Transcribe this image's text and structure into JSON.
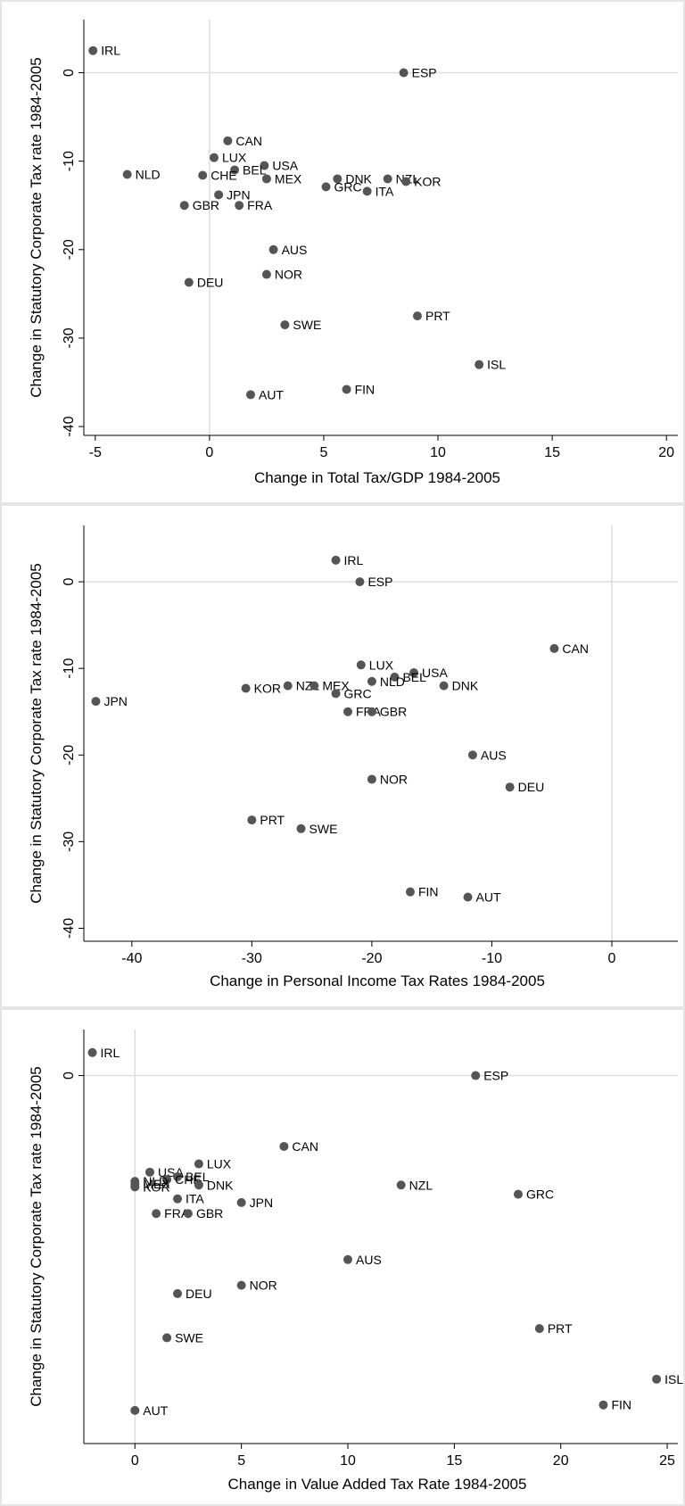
{
  "chart_data": [
    {
      "type": "scatter",
      "xlabel": "Change in Total Tax/GDP 1984-2005",
      "ylabel": "Change in Statutory Corporate Tax rate 1984-2005",
      "xlim": [
        -5.5,
        20.5
      ],
      "ylim": [
        -41,
        6
      ],
      "xticks": [
        -5,
        0,
        5,
        10,
        15,
        20
      ],
      "yticks": [
        0,
        -10,
        -20,
        -30,
        -40
      ],
      "xref": 0,
      "yref": 0,
      "points": [
        {
          "label": "IRL",
          "x": -5.1,
          "y": 2.5
        },
        {
          "label": "ESP",
          "x": 8.5,
          "y": 0
        },
        {
          "label": "CAN",
          "x": 0.8,
          "y": -7.7
        },
        {
          "label": "LUX",
          "x": 0.2,
          "y": -9.6
        },
        {
          "label": "USA",
          "x": 2.4,
          "y": -10.5
        },
        {
          "label": "BEL",
          "x": 1.1,
          "y": -11
        },
        {
          "label": "NLD",
          "x": -3.6,
          "y": -11.5
        },
        {
          "label": "CHE",
          "x": -0.3,
          "y": -11.6
        },
        {
          "label": "MEX",
          "x": 2.5,
          "y": -12
        },
        {
          "label": "DNK",
          "x": 5.6,
          "y": -12
        },
        {
          "label": "NZL",
          "x": 7.8,
          "y": -12
        },
        {
          "label": "KOR",
          "x": 8.6,
          "y": -12.3
        },
        {
          "label": "GRC",
          "x": 5.1,
          "y": -12.9
        },
        {
          "label": "ITA",
          "x": 6.9,
          "y": -13.4
        },
        {
          "label": "JPN",
          "x": 0.4,
          "y": -13.8
        },
        {
          "label": "GBR",
          "x": -1.1,
          "y": -15
        },
        {
          "label": "FRA",
          "x": 1.3,
          "y": -15
        },
        {
          "label": "AUS",
          "x": 2.8,
          "y": -20
        },
        {
          "label": "NOR",
          "x": 2.5,
          "y": -22.8
        },
        {
          "label": "DEU",
          "x": -0.9,
          "y": -23.7
        },
        {
          "label": "PRT",
          "x": 9.1,
          "y": -27.5
        },
        {
          "label": "SWE",
          "x": 3.3,
          "y": -28.5
        },
        {
          "label": "ISL",
          "x": 11.8,
          "y": -33
        },
        {
          "label": "FIN",
          "x": 6,
          "y": -35.8
        },
        {
          "label": "AUT",
          "x": 1.8,
          "y": -36.4
        }
      ]
    },
    {
      "type": "scatter",
      "xlabel": "Change in Personal Income Tax Rates 1984-2005",
      "ylabel": "Change in Statutory Corporate Tax rate 1984-2005",
      "xlim": [
        -44,
        5.5
      ],
      "ylim": [
        -41.5,
        6.5
      ],
      "xticks": [
        -40,
        -30,
        -20,
        -10,
        0
      ],
      "yticks": [
        0,
        -10,
        -20,
        -30,
        -40
      ],
      "xref": 0,
      "yref": 0,
      "points": [
        {
          "label": "IRL",
          "x": -23,
          "y": 2.5
        },
        {
          "label": "ESP",
          "x": -21,
          "y": 0
        },
        {
          "label": "CAN",
          "x": -4.8,
          "y": -7.7
        },
        {
          "label": "LUX",
          "x": -20.9,
          "y": -9.6
        },
        {
          "label": "USA",
          "x": -16.5,
          "y": -10.5
        },
        {
          "label": "BEL",
          "x": -18.1,
          "y": -11
        },
        {
          "label": "NLD",
          "x": -20,
          "y": -11.5
        },
        {
          "label": "DNK",
          "x": -14,
          "y": -12
        },
        {
          "label": "NZL",
          "x": -27,
          "y": -12
        },
        {
          "label": "MEX",
          "x": -24.8,
          "y": -12
        },
        {
          "label": "KOR",
          "x": -30.5,
          "y": -12.3
        },
        {
          "label": "GRC",
          "x": -23,
          "y": -12.9
        },
        {
          "label": "JPN",
          "x": -43,
          "y": -13.8
        },
        {
          "label": "FRA",
          "x": -22,
          "y": -15
        },
        {
          "label": "GBR",
          "x": -20,
          "y": -15
        },
        {
          "label": "AUS",
          "x": -11.6,
          "y": -20
        },
        {
          "label": "NOR",
          "x": -20,
          "y": -22.8
        },
        {
          "label": "DEU",
          "x": -8.5,
          "y": -23.7
        },
        {
          "label": "PRT",
          "x": -30,
          "y": -27.5
        },
        {
          "label": "SWE",
          "x": -25.9,
          "y": -28.5
        },
        {
          "label": "FIN",
          "x": -16.8,
          "y": -35.8
        },
        {
          "label": "AUT",
          "x": -12,
          "y": -36.4
        }
      ]
    },
    {
      "type": "scatter",
      "xlabel": "Change in Value Added Tax Rate 1984-2005",
      "ylabel": "Change in Statutory Corporate Tax rate 1984-2005",
      "xlim": [
        -2.4,
        25.5
      ],
      "ylim": [
        -40,
        5
      ],
      "xticks": [
        0,
        5,
        10,
        15,
        20,
        25
      ],
      "yticks": [
        0
      ],
      "xref": 0,
      "yref": 0,
      "points": [
        {
          "label": "IRL",
          "x": -2,
          "y": 2.5
        },
        {
          "label": "ESP",
          "x": 16,
          "y": 0
        },
        {
          "label": "CAN",
          "x": 7,
          "y": -7.7
        },
        {
          "label": "LUX",
          "x": 3,
          "y": -9.6
        },
        {
          "label": "USA",
          "x": 0.7,
          "y": -10.5
        },
        {
          "label": "BEL",
          "x": 2,
          "y": -11
        },
        {
          "label": "CHE",
          "x": 1.5,
          "y": -11.3
        },
        {
          "label": "NLD",
          "x": 0,
          "y": -11.5
        },
        {
          "label": "MEX",
          "x": 0,
          "y": -11.8
        },
        {
          "label": "KOR",
          "x": 0,
          "y": -12.1
        },
        {
          "label": "DNK",
          "x": 3,
          "y": -11.9
        },
        {
          "label": "NZL",
          "x": 12.5,
          "y": -11.9
        },
        {
          "label": "GRC",
          "x": 18,
          "y": -12.9
        },
        {
          "label": "ITA",
          "x": 2,
          "y": -13.4
        },
        {
          "label": "JPN",
          "x": 5,
          "y": -13.8
        },
        {
          "label": "FRA",
          "x": 1,
          "y": -15
        },
        {
          "label": "GBR",
          "x": 2.5,
          "y": -15
        },
        {
          "label": "AUS",
          "x": 10,
          "y": -20
        },
        {
          "label": "NOR",
          "x": 5,
          "y": -22.8
        },
        {
          "label": "DEU",
          "x": 2,
          "y": -23.7
        },
        {
          "label": "PRT",
          "x": 19,
          "y": -27.5
        },
        {
          "label": "SWE",
          "x": 1.5,
          "y": -28.5
        },
        {
          "label": "ISL",
          "x": 24.5,
          "y": -33
        },
        {
          "label": "FIN",
          "x": 22,
          "y": -35.8
        },
        {
          "label": "AUT",
          "x": 0,
          "y": -36.4
        }
      ]
    }
  ]
}
